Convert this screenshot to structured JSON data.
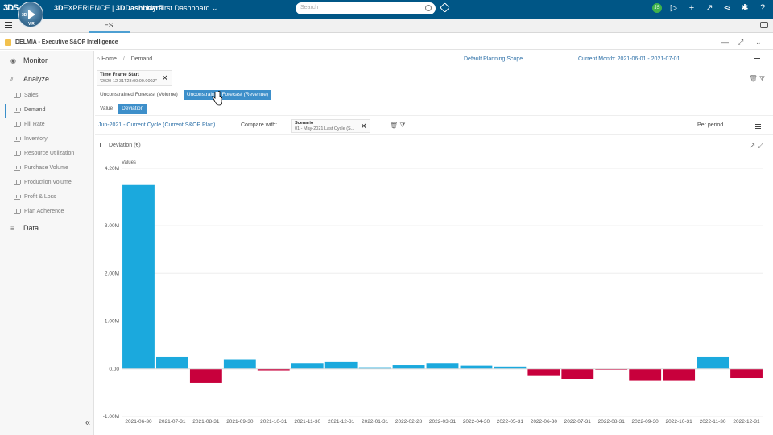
{
  "topbar": {
    "logo": "3DS",
    "compass_version": "V.R",
    "compass_3d": "3D",
    "brand_bold": "3D",
    "brand_rest": "EXPERIENCE | ",
    "brand_dash": "3DDashboard",
    "dashboard_name": "My First Dashboard",
    "search_placeholder": "Search",
    "avatar": "JS"
  },
  "tabbar": {
    "tab": "ESI"
  },
  "app": {
    "title": "DELMIA - Executive S&OP Intelligence"
  },
  "sidebar": {
    "monitor": "Monitor",
    "analyze": "Analyze",
    "data": "Data",
    "items": [
      "Sales",
      "Demand",
      "Fill Rate",
      "Inventory",
      "Resource Utilization",
      "Purchase Volume",
      "Production Volume",
      "Profit & Loss",
      "Plan Adherence"
    ]
  },
  "header": {
    "home": "Home",
    "demand": "Demand",
    "plan_scope": "Default Planning Scope",
    "current_month": "Current Month: 2021-06-01 - 2021-07-01"
  },
  "filter": {
    "title": "Time Frame Start",
    "value": "\"2020-12-31T23:00:00.000Z\""
  },
  "toggles": {
    "forecast_volume": "Unconstrained Forecast (Volume)",
    "forecast_revenue": "Unconstrained Forecast (Revenue)",
    "value": "Value",
    "deviation": "Deviation"
  },
  "compare": {
    "cycle": "Jun-2021 - Current Cycle (Current S&OP Plan)",
    "label": "Compare with:",
    "scenario_title": "Scenario",
    "scenario_value": "01 - May-2021 Last Cycle (S...",
    "per_period": "Per period"
  },
  "chart_data": {
    "type": "bar",
    "title": "Deviation (€)",
    "ylabel": "Values",
    "ylim": [
      -1000000,
      4200000
    ],
    "yticks": [
      {
        "v": 4200000,
        "label": "4.20M"
      },
      {
        "v": 3000000,
        "label": "3.00M"
      },
      {
        "v": 2000000,
        "label": "2.00M"
      },
      {
        "v": 1000000,
        "label": "1.00M"
      },
      {
        "v": 0,
        "label": "0.00"
      },
      {
        "v": -1000000,
        "label": "-1.00M"
      }
    ],
    "categories": [
      "2021-06-30",
      "2021-07-31",
      "2021-08-31",
      "2021-09-30",
      "2021-10-31",
      "2021-11-30",
      "2021-12-31",
      "2022-01-31",
      "2022-02-28",
      "2022-03-31",
      "2022-04-30",
      "2022-05-31",
      "2022-06-30",
      "2022-07-31",
      "2022-08-31",
      "2022-09-30",
      "2022-10-31",
      "2022-11-30",
      "2022-12-31"
    ],
    "values": [
      3850000,
      250000,
      -290000,
      190000,
      -30000,
      110000,
      150000,
      20000,
      80000,
      110000,
      70000,
      50000,
      -150000,
      -220000,
      -10000,
      -250000,
      -250000,
      250000,
      -190000
    ],
    "positive_color": "#1ba9dd",
    "negative_color": "#c8003c"
  }
}
